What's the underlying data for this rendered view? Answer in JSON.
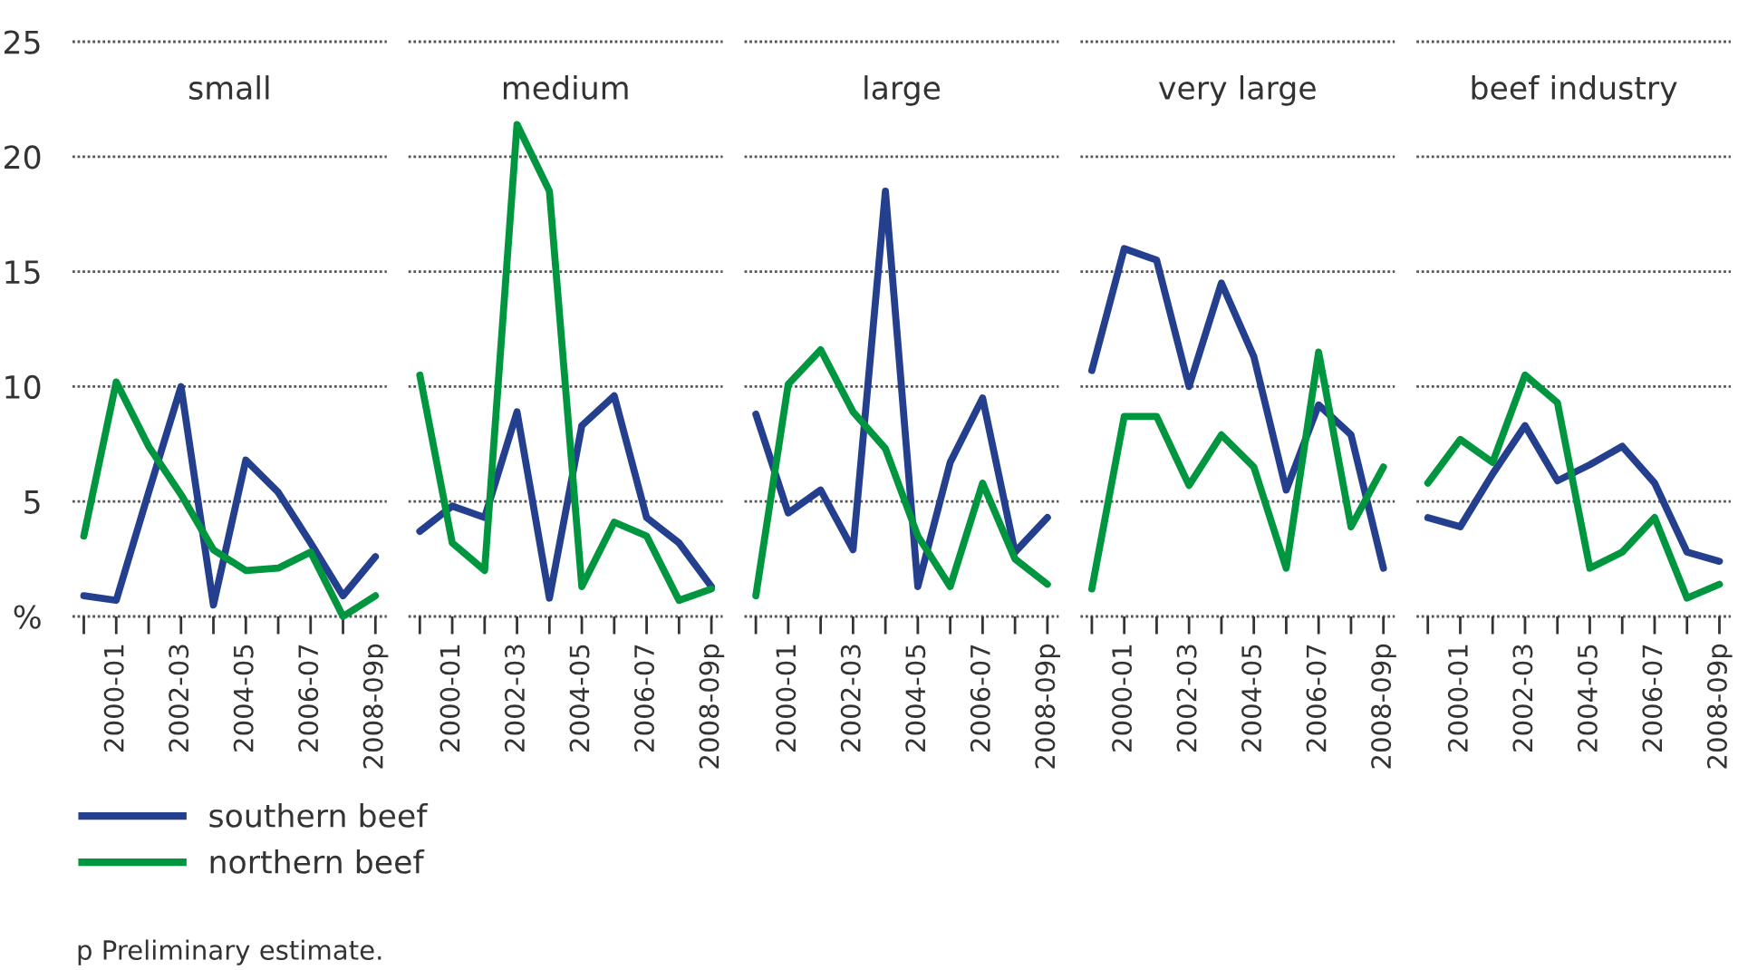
{
  "chart_data": [
    {
      "type": "line",
      "title": "small",
      "categories": [
        null,
        "2000-01",
        null,
        "2002-03",
        null,
        "2004-05",
        null,
        "2006-07",
        null,
        "2008-09p"
      ],
      "ylim": [
        0,
        25
      ],
      "yticks": [
        {
          "value": 0,
          "label": "%"
        },
        5,
        10,
        15,
        20,
        25
      ],
      "grid": "y",
      "legend": "bottom",
      "marker": "none",
      "line_style": "solid",
      "annotations": [
        "p Preliminary estimate."
      ],
      "series": [
        {
          "name": "southern beef",
          "color": "#253f8f",
          "values": [
            0.9,
            0.7,
            5.4,
            10.0,
            0.5,
            6.8,
            5.4,
            3.2,
            0.9,
            2.6
          ]
        },
        {
          "name": "northern beef",
          "color": "#00963f",
          "values": [
            3.5,
            10.2,
            7.4,
            5.3,
            2.9,
            2.0,
            2.1,
            2.8,
            0.0,
            0.9
          ]
        }
      ]
    },
    {
      "type": "line",
      "title": "medium",
      "categories": [
        null,
        "2000-01",
        null,
        "2002-03",
        null,
        "2004-05",
        null,
        "2006-07",
        null,
        "2008-09p"
      ],
      "ylim": [
        0,
        25
      ],
      "yticks": [
        0,
        5,
        10,
        15,
        20,
        25
      ],
      "grid": "y",
      "tick_labels": "x",
      "marker": "none",
      "line_style": "solid",
      "series": [
        {
          "name": "southern beef",
          "color": "#253f8f",
          "values": [
            3.7,
            4.8,
            4.3,
            8.9,
            0.8,
            8.3,
            9.6,
            4.3,
            3.2,
            1.3
          ]
        },
        {
          "name": "northern beef",
          "color": "#00963f",
          "values": [
            10.5,
            3.2,
            2.0,
            21.4,
            18.5,
            1.3,
            4.1,
            3.5,
            0.7,
            1.2
          ]
        }
      ]
    },
    {
      "type": "line",
      "title": "large",
      "categories": [
        null,
        "2000-01",
        null,
        "2002-03",
        null,
        "2004-05",
        null,
        "2006-07",
        null,
        "2008-09p"
      ],
      "ylim": [
        0,
        25
      ],
      "yticks": [
        0,
        5,
        10,
        15,
        20,
        25
      ],
      "grid": "y",
      "tick_labels": "x",
      "marker": "none",
      "line_style": "solid",
      "series": [
        {
          "name": "southern beef",
          "color": "#253f8f",
          "values": [
            8.8,
            4.5,
            5.5,
            2.9,
            18.5,
            1.3,
            6.7,
            9.5,
            2.8,
            4.3
          ]
        },
        {
          "name": "northern beef",
          "color": "#00963f",
          "values": [
            0.9,
            10.1,
            11.6,
            8.9,
            7.3,
            3.5,
            1.3,
            5.8,
            2.5,
            1.4
          ]
        }
      ]
    },
    {
      "type": "line",
      "title": "very large",
      "categories": [
        null,
        "2000-01",
        null,
        "2002-03",
        null,
        "2004-05",
        null,
        "2006-07",
        null,
        "2008-09p"
      ],
      "ylim": [
        0,
        25
      ],
      "yticks": [
        0,
        5,
        10,
        15,
        20,
        25
      ],
      "grid": "y",
      "tick_labels": "x",
      "marker": "none",
      "line_style": "solid",
      "series": [
        {
          "name": "southern beef",
          "color": "#253f8f",
          "values": [
            10.7,
            16.0,
            15.5,
            10.0,
            14.5,
            11.3,
            5.5,
            9.2,
            7.9,
            2.1
          ]
        },
        {
          "name": "northern beef",
          "color": "#00963f",
          "values": [
            1.2,
            8.7,
            8.7,
            5.7,
            7.9,
            6.5,
            2.1,
            11.5,
            3.9,
            6.5
          ]
        }
      ]
    },
    {
      "type": "line",
      "title": "beef industry",
      "categories": [
        null,
        "2000-01",
        null,
        "2002-03",
        null,
        "2004-05",
        null,
        "2006-07",
        null,
        "2008-09p"
      ],
      "ylim": [
        0,
        25
      ],
      "yticks": [
        0,
        5,
        10,
        15,
        20,
        25
      ],
      "grid": "y",
      "tick_labels": "x",
      "marker": "none",
      "line_style": "solid",
      "series": [
        {
          "name": "southern beef",
          "color": "#253f8f",
          "values": [
            4.3,
            3.9,
            6.2,
            8.3,
            5.9,
            6.6,
            7.4,
            5.8,
            2.8,
            2.4
          ]
        },
        {
          "name": "northern beef",
          "color": "#00963f",
          "values": [
            5.8,
            7.7,
            6.7,
            10.5,
            9.3,
            2.1,
            2.8,
            4.3,
            0.8,
            1.4
          ]
        }
      ]
    }
  ]
}
